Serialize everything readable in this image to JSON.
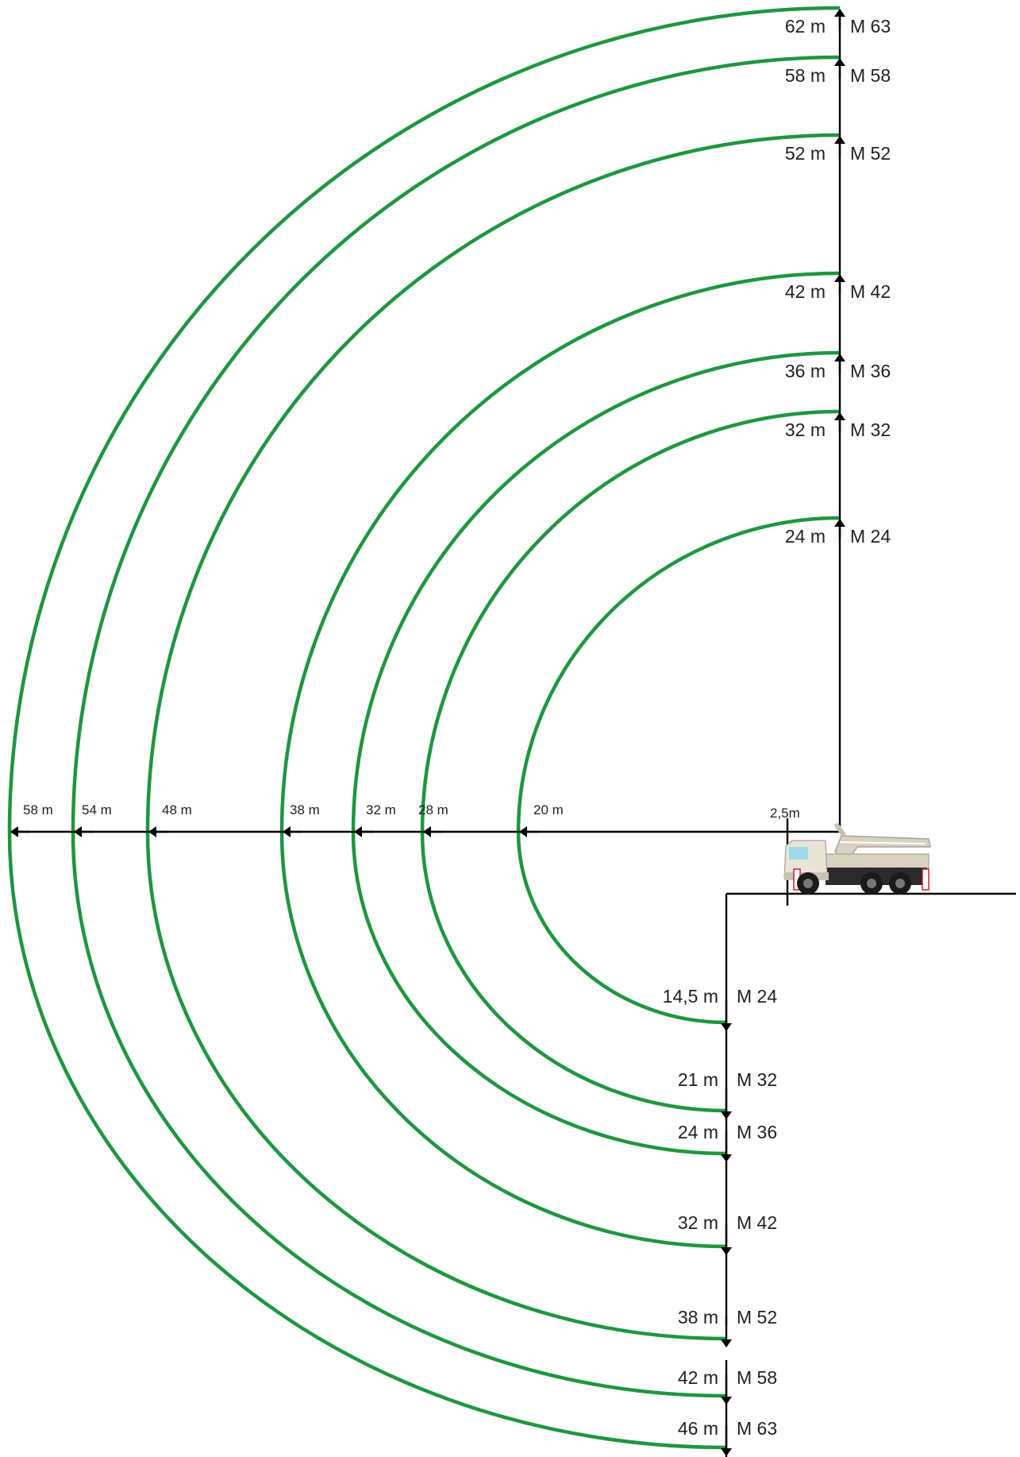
{
  "colors": {
    "arc": "#1f9640",
    "axis": "#000000",
    "text": "#231f20",
    "truck_body": "#d8d2c3",
    "truck_cab_window": "#9fd8e6",
    "truck_tire": "#1a1a1a",
    "warning_stripe": "#d0202a"
  },
  "models": [
    {
      "id": "M24",
      "model_label": "M 24",
      "height_label": "24 m",
      "reach_label": "20 m",
      "depth_label": "14,5 m"
    },
    {
      "id": "M32",
      "model_label": "M 32",
      "height_label": "32 m",
      "reach_label": "28 m",
      "depth_label": "21 m"
    },
    {
      "id": "M36",
      "model_label": "M 36",
      "height_label": "36 m",
      "reach_label": "32 m",
      "depth_label": "24 m"
    },
    {
      "id": "M42",
      "model_label": "M 42",
      "height_label": "42 m",
      "reach_label": "38 m",
      "depth_label": "32 m"
    },
    {
      "id": "M52",
      "model_label": "M 52",
      "height_label": "52 m",
      "reach_label": "48 m",
      "depth_label": "38 m"
    },
    {
      "id": "M58",
      "model_label": "M 58",
      "height_label": "58 m",
      "reach_label": "54 m",
      "depth_label": "42 m"
    },
    {
      "id": "M63",
      "model_label": "M 63",
      "height_label": "62 m",
      "reach_label": "58 m",
      "depth_label": "46 m"
    }
  ],
  "offset_label": "2,5m",
  "truck": {
    "icon": "concrete-pump-truck-icon"
  }
}
